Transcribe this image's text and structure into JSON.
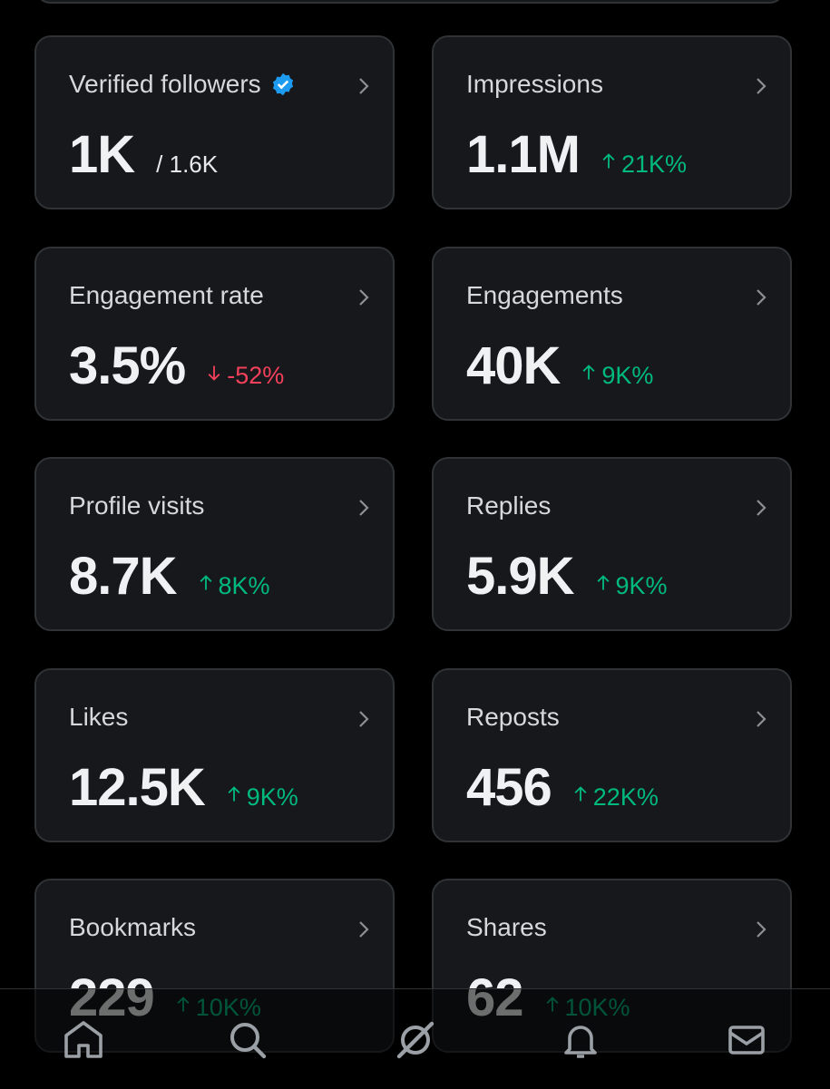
{
  "cards": [
    {
      "title": "Verified followers",
      "verified": true,
      "value": "1K",
      "secondary": "/ 1.6K"
    },
    {
      "title": "Impressions",
      "value": "1.1M",
      "change": "21K%",
      "direction": "up"
    },
    {
      "title": "Engagement rate",
      "value": "3.5%",
      "change": "-52%",
      "direction": "down"
    },
    {
      "title": "Engagements",
      "value": "40K",
      "change": "9K%",
      "direction": "up"
    },
    {
      "title": "Profile visits",
      "value": "8.7K",
      "change": "8K%",
      "direction": "up"
    },
    {
      "title": "Replies",
      "value": "5.9K",
      "change": "9K%",
      "direction": "up"
    },
    {
      "title": "Likes",
      "value": "12.5K",
      "change": "9K%",
      "direction": "up"
    },
    {
      "title": "Reposts",
      "value": "456",
      "change": "22K%",
      "direction": "up"
    },
    {
      "title": "Bookmarks",
      "value": "229",
      "change": "10K%",
      "direction": "up"
    },
    {
      "title": "Shares",
      "value": "62",
      "change": "10K%",
      "direction": "up"
    }
  ]
}
